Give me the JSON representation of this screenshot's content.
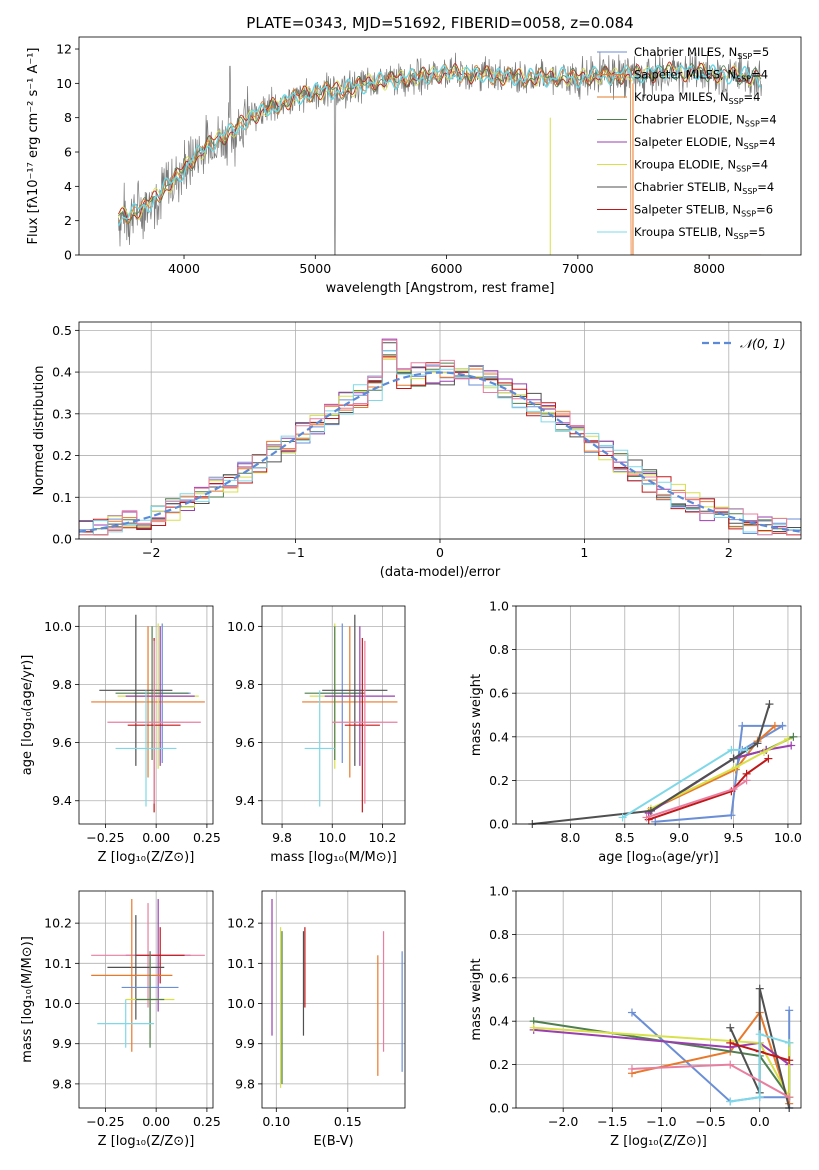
{
  "colors": {
    "chabrier_miles": "#6a8fd6",
    "salpeter_miles": "#e8782a",
    "kroupa_miles": "#e07b2a",
    "chabrier_elodie": "#4f7f4f",
    "salpeter_elodie": "#9a3fb0",
    "kroupa_elodie": "#d8e04a",
    "chabrier_stelib": "#505050",
    "salpeter_stelib": "#c01818",
    "kroupa_stelib": "#7fd8e8",
    "model": "#6ad8e6",
    "data": "#7a7a7a",
    "gaussian": "#5b8bd8",
    "pink": "#e87fa0"
  },
  "chart_data": [
    {
      "id": "spectrum",
      "type": "line",
      "title": "PLATE=0343, MJD=51692, FIBERID=0058, z=0.084",
      "xlabel": "wavelength [Angstrom, rest frame]",
      "ylabel": "Flux [fλ10⁻¹⁷ erg cm⁻² s⁻¹ A⁻¹]",
      "xlim": [
        3200,
        8700
      ],
      "ylim": [
        0,
        12.7
      ],
      "xticks": [
        "4000",
        "5000",
        "6000",
        "7000",
        "8000"
      ],
      "yticks": [
        "0",
        "2",
        "4",
        "6",
        "8",
        "10",
        "12"
      ],
      "grid": false,
      "legend_position": "right",
      "legend": [
        "Chabrier MILES, N_SSP=5",
        "Salpeter MILES, N_SSP=4",
        "Kroupa MILES, N_SSP=4",
        "Chabrier ELODIE, N_SSP=4",
        "Salpeter ELODIE, N_SSP=4",
        "Kroupa ELODIE, N_SSP=4",
        "Chabrier STELIB, N_SSP=4",
        "Salpeter STELIB, N_SSP=6",
        "Kroupa STELIB, N_SSP=5"
      ],
      "legend_text": [
        {
          "pre": "Chabrier MILES, N",
          "sub": "SSP",
          "post": "=5"
        },
        {
          "pre": "Salpeter MILES, N",
          "sub": "SSP",
          "post": "=4"
        },
        {
          "pre": "Kroupa MILES, N",
          "sub": "SSP",
          "post": "=4"
        },
        {
          "pre": "Chabrier ELODIE, N",
          "sub": "SSP",
          "post": "=4"
        },
        {
          "pre": "Salpeter ELODIE, N",
          "sub": "SSP",
          "post": "=4"
        },
        {
          "pre": "Kroupa ELODIE, N",
          "sub": "SSP",
          "post": "=4"
        },
        {
          "pre": "Chabrier STELIB, N",
          "sub": "SSP",
          "post": "=4"
        },
        {
          "pre": "Salpeter STELIB, N",
          "sub": "SSP",
          "post": "=6"
        },
        {
          "pre": "Kroupa STELIB, N",
          "sub": "SSP",
          "post": "=5"
        }
      ],
      "continuum": {
        "x": [
          3500,
          3600,
          3700,
          3800,
          3900,
          4000,
          4100,
          4200,
          4300,
          4400,
          4500,
          4600,
          4700,
          4800,
          4900,
          5000,
          5100,
          5200,
          5300,
          5400,
          5500,
          5600,
          5700,
          5800,
          5900,
          6000,
          6100,
          6200,
          6300,
          6400,
          6500,
          6600,
          6700,
          6800,
          6900,
          7000,
          7100,
          7200,
          7300,
          7400,
          7500,
          7600,
          7700,
          7800,
          7900,
          8000,
          8100,
          8200,
          8300,
          8400
        ],
        "y": [
          2.2,
          2.4,
          2.8,
          3.5,
          4.2,
          5.0,
          5.8,
          6.5,
          6.9,
          7.4,
          8.0,
          8.4,
          8.7,
          9.0,
          9.3,
          9.5,
          9.6,
          9.6,
          9.8,
          10.0,
          10.1,
          10.2,
          10.3,
          10.4,
          10.5,
          10.6,
          10.6,
          10.5,
          10.5,
          10.4,
          10.4,
          10.3,
          10.4,
          10.3,
          10.4,
          10.3,
          10.4,
          10.5,
          10.4,
          10.6,
          10.5,
          10.6,
          10.7,
          10.6,
          10.7,
          10.6,
          10.5,
          10.5,
          10.4,
          10.3
        ]
      }
    },
    {
      "id": "residuals",
      "type": "line",
      "xlabel": "(data-model)/error",
      "ylabel": "Normed distribution",
      "xlim": [
        -2.5,
        2.5
      ],
      "ylim": [
        0,
        0.52
      ],
      "xticks": [
        "−2",
        "−1",
        "0",
        "1",
        "2"
      ],
      "yticks": [
        "0.0",
        "0.1",
        "0.2",
        "0.3",
        "0.4",
        "0.5"
      ],
      "grid": true,
      "legend_position": "top-right",
      "legend": [
        "𝒩(0, 1)"
      ]
    },
    {
      "id": "z_age",
      "type": "scatter",
      "xlabel": "Z [log₁₀(Z/Z⊙)]",
      "ylabel": "age [log₁₀(age/yr)]",
      "xlim": [
        -0.38,
        0.28
      ],
      "ylim": [
        9.32,
        10.07
      ],
      "xticks": [
        "−0.25",
        "0.00",
        "0.25"
      ],
      "yticks": [
        "9.4",
        "9.6",
        "9.8",
        "10.0"
      ],
      "grid": true,
      "points": [
        {
          "c": "chabrier_miles",
          "x": 0.03,
          "xe": 0.14,
          "y": 9.77,
          "ye": 0.24
        },
        {
          "c": "salpeter_miles",
          "x": -0.04,
          "xe": 0.28,
          "y": 9.74,
          "ye": 0.26
        },
        {
          "c": "kroupa_elodie",
          "x": 0.01,
          "xe": 0.2,
          "y": 9.76,
          "ye": 0.25
        },
        {
          "c": "chabrier_elodie",
          "x": -0.02,
          "xe": 0.18,
          "y": 9.77,
          "ye": 0.23
        },
        {
          "c": "salpeter_elodie",
          "x": 0.02,
          "xe": 0.17,
          "y": 9.76,
          "ye": 0.24
        },
        {
          "c": "chabrier_stelib",
          "x": -0.1,
          "xe": 0.18,
          "y": 9.78,
          "ye": 0.26
        },
        {
          "c": "salpeter_stelib",
          "x": -0.01,
          "xe": 0.13,
          "y": 9.66,
          "ye": 0.3
        },
        {
          "c": "pink",
          "x": -0.01,
          "xe": 0.23,
          "y": 9.67,
          "ye": 0.28
        },
        {
          "c": "kroupa_stelib",
          "x": -0.05,
          "xe": 0.15,
          "y": 9.58,
          "ye": 0.2
        }
      ]
    },
    {
      "id": "mass_age",
      "type": "scatter",
      "xlabel": "mass [log₁₀(M/M⊙)]",
      "ylabel": "",
      "xlim": [
        9.72,
        10.29
      ],
      "ylim": [
        9.32,
        10.07
      ],
      "xticks": [
        "9.8",
        "10.0",
        "10.2"
      ],
      "yticks": [
        "9.4",
        "9.6",
        "9.8",
        "10.0"
      ],
      "grid": true,
      "points": [
        {
          "c": "chabrier_miles",
          "x": 10.04,
          "xe": 0.09,
          "y": 9.77,
          "ye": 0.24
        },
        {
          "c": "salpeter_miles",
          "x": 10.07,
          "xe": 0.19,
          "y": 9.74,
          "ye": 0.26
        },
        {
          "c": "kroupa_elodie",
          "x": 10.01,
          "xe": 0.1,
          "y": 9.76,
          "ye": 0.25
        },
        {
          "c": "chabrier_elodie",
          "x": 10.01,
          "xe": 0.12,
          "y": 9.77,
          "ye": 0.23
        },
        {
          "c": "salpeter_elodie",
          "x": 10.11,
          "xe": 0.14,
          "y": 9.76,
          "ye": 0.24
        },
        {
          "c": "chabrier_stelib",
          "x": 10.09,
          "xe": 0.13,
          "y": 9.78,
          "ye": 0.26
        },
        {
          "c": "salpeter_stelib",
          "x": 10.12,
          "xe": 0.07,
          "y": 9.66,
          "ye": 0.3
        },
        {
          "c": "pink",
          "x": 10.13,
          "xe": 0.13,
          "y": 9.67,
          "ye": 0.28
        },
        {
          "c": "kroupa_stelib",
          "x": 9.95,
          "xe": 0.06,
          "y": 9.58,
          "ye": 0.2
        }
      ]
    },
    {
      "id": "age_weight",
      "type": "line",
      "xlabel": "age [log₁₀(age/yr)]",
      "ylabel": "mass weight",
      "xlim": [
        7.5,
        10.12
      ],
      "ylim": [
        0,
        1
      ],
      "xticks": [
        "8.0",
        "8.5",
        "9.0",
        "9.5",
        "10.0"
      ],
      "yticks": [
        "0.0",
        "0.2",
        "0.4",
        "0.6",
        "0.8",
        "1.0"
      ],
      "grid": true,
      "series": [
        {
          "c": "chabrier_miles",
          "x": [
            8.78,
            9.48,
            9.58,
            9.95,
            9.58,
            9.52
          ],
          "y": [
            0.01,
            0.04,
            0.45,
            0.45,
            0.34,
            0.25
          ]
        },
        {
          "c": "salpeter_miles",
          "x": [
            8.72,
            9.52,
            9.72,
            9.88
          ],
          "y": [
            0.06,
            0.25,
            0.38,
            0.45
          ]
        },
        {
          "c": "chabrier_elodie",
          "x": [
            8.74,
            9.5,
            9.8,
            10.05
          ],
          "y": [
            0.06,
            0.3,
            0.34,
            0.4
          ]
        },
        {
          "c": "salpeter_elodie",
          "x": [
            8.72,
            9.5,
            9.8,
            10.03
          ],
          "y": [
            0.05,
            0.3,
            0.34,
            0.36
          ]
        },
        {
          "c": "kroupa_elodie",
          "x": [
            8.74,
            9.52,
            9.78,
            10.0
          ],
          "y": [
            0.07,
            0.26,
            0.33,
            0.39
          ]
        },
        {
          "c": "chabrier_stelib",
          "x": [
            7.65,
            8.74,
            9.5,
            9.72,
            9.83
          ],
          "y": [
            0.0,
            0.06,
            0.3,
            0.37,
            0.55
          ]
        },
        {
          "c": "salpeter_stelib",
          "x": [
            8.72,
            9.48,
            9.62,
            9.82
          ],
          "y": [
            0.02,
            0.15,
            0.23,
            0.3
          ]
        },
        {
          "c": "kroupa_stelib",
          "x": [
            8.48,
            9.48,
            9.62
          ],
          "y": [
            0.03,
            0.34,
            0.34
          ]
        },
        {
          "c": "pink",
          "x": [
            8.7,
            9.5,
            9.62
          ],
          "y": [
            0.03,
            0.16,
            0.2
          ]
        }
      ]
    },
    {
      "id": "z_mass",
      "type": "scatter",
      "xlabel": "Z [log₁₀(Z/Z⊙)]",
      "ylabel": "mass [log₁₀(M/M⊙)]",
      "xlim": [
        -0.38,
        0.28
      ],
      "ylim": [
        9.74,
        10.28
      ],
      "xticks": [
        "−0.25",
        "0.00",
        "0.25"
      ],
      "yticks": [
        "9.8",
        "9.9",
        "10.0",
        "10.1",
        "10.2"
      ],
      "grid": true,
      "points": [
        {
          "c": "salpeter_elodie",
          "x": 0.01,
          "xe": 0.16,
          "y": 10.12,
          "ye": 0.14
        },
        {
          "c": "pink",
          "x": -0.04,
          "xe": 0.28,
          "y": 10.12,
          "ye": 0.13
        },
        {
          "c": "salpeter_stelib",
          "x": 0.02,
          "xe": 0.12,
          "y": 10.12,
          "ye": 0.07
        },
        {
          "c": "chabrier_stelib",
          "x": -0.1,
          "xe": 0.14,
          "y": 10.09,
          "ye": 0.13
        },
        {
          "c": "salpeter_miles",
          "x": -0.12,
          "xe": 0.2,
          "y": 10.07,
          "ye": 0.19
        },
        {
          "c": "chabrier_miles",
          "x": -0.03,
          "xe": 0.14,
          "y": 10.04,
          "ye": 0.09
        },
        {
          "c": "kroupa_elodie",
          "x": -0.03,
          "xe": 0.12,
          "y": 10.01,
          "ye": 0.1
        },
        {
          "c": "chabrier_elodie",
          "x": -0.03,
          "xe": 0.07,
          "y": 10.01,
          "ye": 0.12
        },
        {
          "c": "kroupa_stelib",
          "x": -0.15,
          "xe": 0.14,
          "y": 9.95,
          "ye": 0.06
        }
      ]
    },
    {
      "id": "ebv_mass",
      "type": "scatter",
      "xlabel": "E(B-V)",
      "ylabel": "",
      "xlim": [
        0.09,
        0.19
      ],
      "ylim": [
        9.74,
        10.28
      ],
      "xticks": [
        "0.10",
        "0.15"
      ],
      "yticks": [
        "9.8",
        "9.9",
        "10.0",
        "10.1",
        "10.2"
      ],
      "grid": true,
      "points": [
        {
          "c": "salpeter_elodie",
          "x": 0.097,
          "y": 10.09,
          "ye": 0.17
        },
        {
          "c": "kroupa_elodie",
          "x": 0.103,
          "y": 9.99,
          "ye": 0.2
        },
        {
          "c": "chabrier_elodie",
          "x": 0.104,
          "y": 9.99,
          "ye": 0.19
        },
        {
          "c": "chabrier_stelib",
          "x": 0.119,
          "y": 10.05,
          "ye": 0.13
        },
        {
          "c": "salpeter_stelib",
          "x": 0.12,
          "y": 10.09,
          "ye": 0.1
        },
        {
          "c": "salpeter_miles",
          "x": 0.171,
          "y": 9.97,
          "ye": 0.15
        },
        {
          "c": "pink",
          "x": 0.175,
          "y": 10.03,
          "ye": 0.15
        },
        {
          "c": "chabrier_miles",
          "x": 0.188,
          "y": 9.98,
          "ye": 0.15
        }
      ]
    },
    {
      "id": "z_weight",
      "type": "line",
      "xlabel": "Z [log₁₀(Z/Z⊙)]",
      "ylabel": "mass weight",
      "xlim": [
        -2.48,
        0.42
      ],
      "ylim": [
        0,
        1
      ],
      "xticks": [
        "−2.0",
        "−1.5",
        "−1.0",
        "−0.5",
        "0.0"
      ],
      "yticks": [
        "0.0",
        "0.2",
        "0.4",
        "0.6",
        "0.8",
        "1.0"
      ],
      "grid": true,
      "series": [
        {
          "c": "chabrier_miles",
          "x": [
            -1.3,
            -0.3,
            0.0,
            0.3,
            0.3,
            0.3
          ],
          "y": [
            0.44,
            0.03,
            0.05,
            0.05,
            0.45,
            0.0
          ]
        },
        {
          "c": "salpeter_miles",
          "x": [
            -1.3,
            -0.3,
            0.0,
            0.3
          ],
          "y": [
            0.16,
            0.26,
            0.44,
            0.02
          ]
        },
        {
          "c": "chabrier_elodie",
          "x": [
            -2.3,
            0.0,
            0.3,
            0.3
          ],
          "y": [
            0.4,
            0.24,
            0.05,
            0.3
          ]
        },
        {
          "c": "salpeter_elodie",
          "x": [
            -2.3,
            -0.3,
            0.0,
            0.3
          ],
          "y": [
            0.36,
            0.28,
            0.3,
            0.2
          ]
        },
        {
          "c": "kroupa_elodie",
          "x": [
            -2.3,
            0.0,
            0.3,
            0.3
          ],
          "y": [
            0.37,
            0.3,
            0.05,
            0.3
          ]
        },
        {
          "c": "chabrier_stelib",
          "x": [
            -0.3,
            0.0,
            0.0,
            0.3
          ],
          "y": [
            0.37,
            0.07,
            0.55,
            0.0
          ]
        },
        {
          "c": "salpeter_stelib",
          "x": [
            -0.3,
            0.0,
            0.3
          ],
          "y": [
            0.3,
            0.26,
            0.22
          ]
        },
        {
          "c": "kroupa_stelib",
          "x": [
            -0.3,
            0.0,
            0.0,
            0.3
          ],
          "y": [
            0.03,
            0.05,
            0.34,
            0.3
          ]
        },
        {
          "c": "pink",
          "x": [
            -1.3,
            -0.3,
            0.3
          ],
          "y": [
            0.18,
            0.2,
            0.05
          ]
        }
      ]
    }
  ]
}
